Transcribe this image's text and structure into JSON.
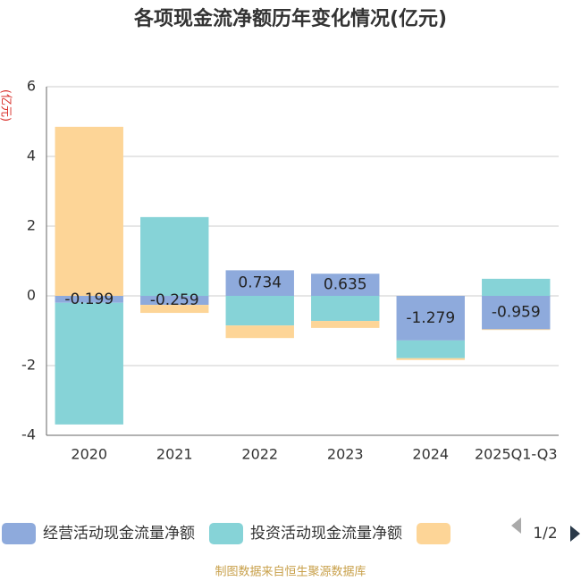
{
  "chart_data": {
    "type": "bar",
    "stacked": true,
    "title": "各项现金流净额历年变化情况(亿元)",
    "y_label": "(亿元)",
    "categories": [
      "2020",
      "2021",
      "2022",
      "2023",
      "2024",
      "2025Q1-Q3"
    ],
    "series": [
      {
        "name": "经营活动现金流量净额",
        "color": "#8eaadc",
        "values": [
          -0.199,
          -0.259,
          0.734,
          0.635,
          -1.279,
          -0.959
        ],
        "show_labels": true
      },
      {
        "name": "投资活动现金流量净额",
        "color": "#86d3d7",
        "values": [
          -3.49,
          2.26,
          -0.85,
          -0.72,
          -0.51,
          0.49
        ]
      },
      {
        "color": "#fdd597",
        "values": [
          4.85,
          -0.23,
          -0.36,
          -0.2,
          -0.05,
          -0.02
        ]
      }
    ],
    "ylim": [
      -4,
      6
    ],
    "yticks": [
      -4,
      -2,
      0,
      2,
      4,
      6
    ],
    "grid": true,
    "legend_page": "1/2",
    "source": "制图数据来自恒生聚源数据库"
  }
}
